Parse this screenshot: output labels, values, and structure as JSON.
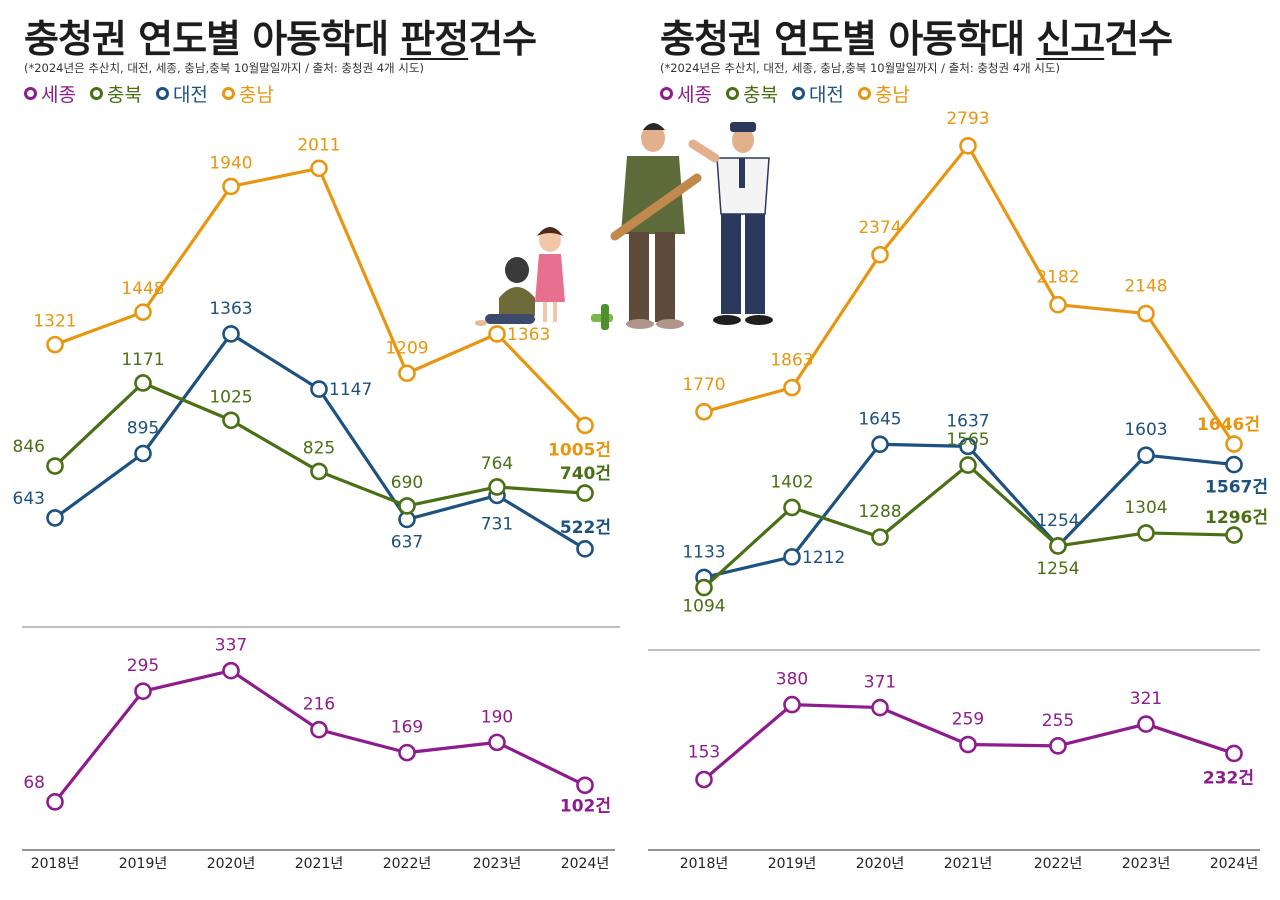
{
  "colors": {
    "sejong": "#8e1c8f",
    "chungbuk": "#4a7014",
    "daejeon": "#1d5180",
    "chungnam": "#e8960f",
    "grid": "#999999",
    "text": "#222222"
  },
  "legend": [
    {
      "key": "sejong",
      "label": "세종"
    },
    {
      "key": "chungbuk",
      "label": "충북"
    },
    {
      "key": "daejeon",
      "label": "대전"
    },
    {
      "key": "chungnam",
      "label": "충남"
    }
  ],
  "charts": {
    "left": {
      "title_main": "충청권 연도별 아동학대 ",
      "title_emph": "판정",
      "title_tail": "건수",
      "note": "(*2024년은 추산치, 대전, 세종, 충남,충북 10월말일까지 / 출처: 충청권 4개 시도)"
    },
    "right": {
      "title_main": "충청권 연도별 아동학대 ",
      "title_emph": "신고",
      "title_tail": "건수",
      "note": "(*2024년은 추산치, 대전, 세종, 충남,충북 10월말일까지 / 출처: 충청권 4개 시도)"
    }
  },
  "chart_data": [
    {
      "type": "line",
      "title": "충청권 연도별 아동학대 판정건수",
      "categories": [
        "2018년",
        "2019년",
        "2020년",
        "2021년",
        "2022년",
        "2023년",
        "2024년"
      ],
      "series": [
        {
          "key": "chungnam",
          "name": "충남",
          "values": [
            1321,
            1448,
            1940,
            2011,
            1209,
            1363,
            1005
          ],
          "last_label": "1005건"
        },
        {
          "key": "daejeon",
          "name": "대전",
          "values": [
            643,
            895,
            1363,
            1147,
            637,
            731,
            522
          ],
          "last_label": "522건"
        },
        {
          "key": "chungbuk",
          "name": "충북",
          "values": [
            846,
            1171,
            1025,
            825,
            690,
            764,
            740
          ],
          "last_label": "740건"
        },
        {
          "key": "sejong",
          "name": "세종",
          "values": [
            68,
            295,
            337,
            216,
            169,
            190,
            102
          ],
          "last_label": "102건"
        }
      ],
      "upper_ylim": [
        400,
        2200
      ],
      "lower_ylim": [
        0,
        400
      ]
    },
    {
      "type": "line",
      "title": "충청권 연도별 아동학대 신고건수",
      "categories": [
        "2018년",
        "2019년",
        "2020년",
        "2021년",
        "2022년",
        "2023년",
        "2024년"
      ],
      "series": [
        {
          "key": "chungnam",
          "name": "충남",
          "values": [
            1770,
            1863,
            2374,
            2793,
            2182,
            2148,
            1646
          ],
          "last_label": "1646건"
        },
        {
          "key": "daejeon",
          "name": "대전",
          "values": [
            1133,
            1212,
            1645,
            1637,
            1254,
            1603,
            1567
          ],
          "last_label": "1567건"
        },
        {
          "key": "chungbuk",
          "name": "충북",
          "values": [
            1094,
            1402,
            1288,
            1565,
            1254,
            1304,
            1296
          ],
          "last_label": "1296건"
        },
        {
          "key": "sejong",
          "name": "세종",
          "values": [
            153,
            380,
            371,
            259,
            255,
            321,
            232
          ],
          "last_label": "232건"
        }
      ],
      "upper_ylim": [
        950,
        2900
      ],
      "lower_ylim": [
        0,
        500
      ]
    }
  ]
}
